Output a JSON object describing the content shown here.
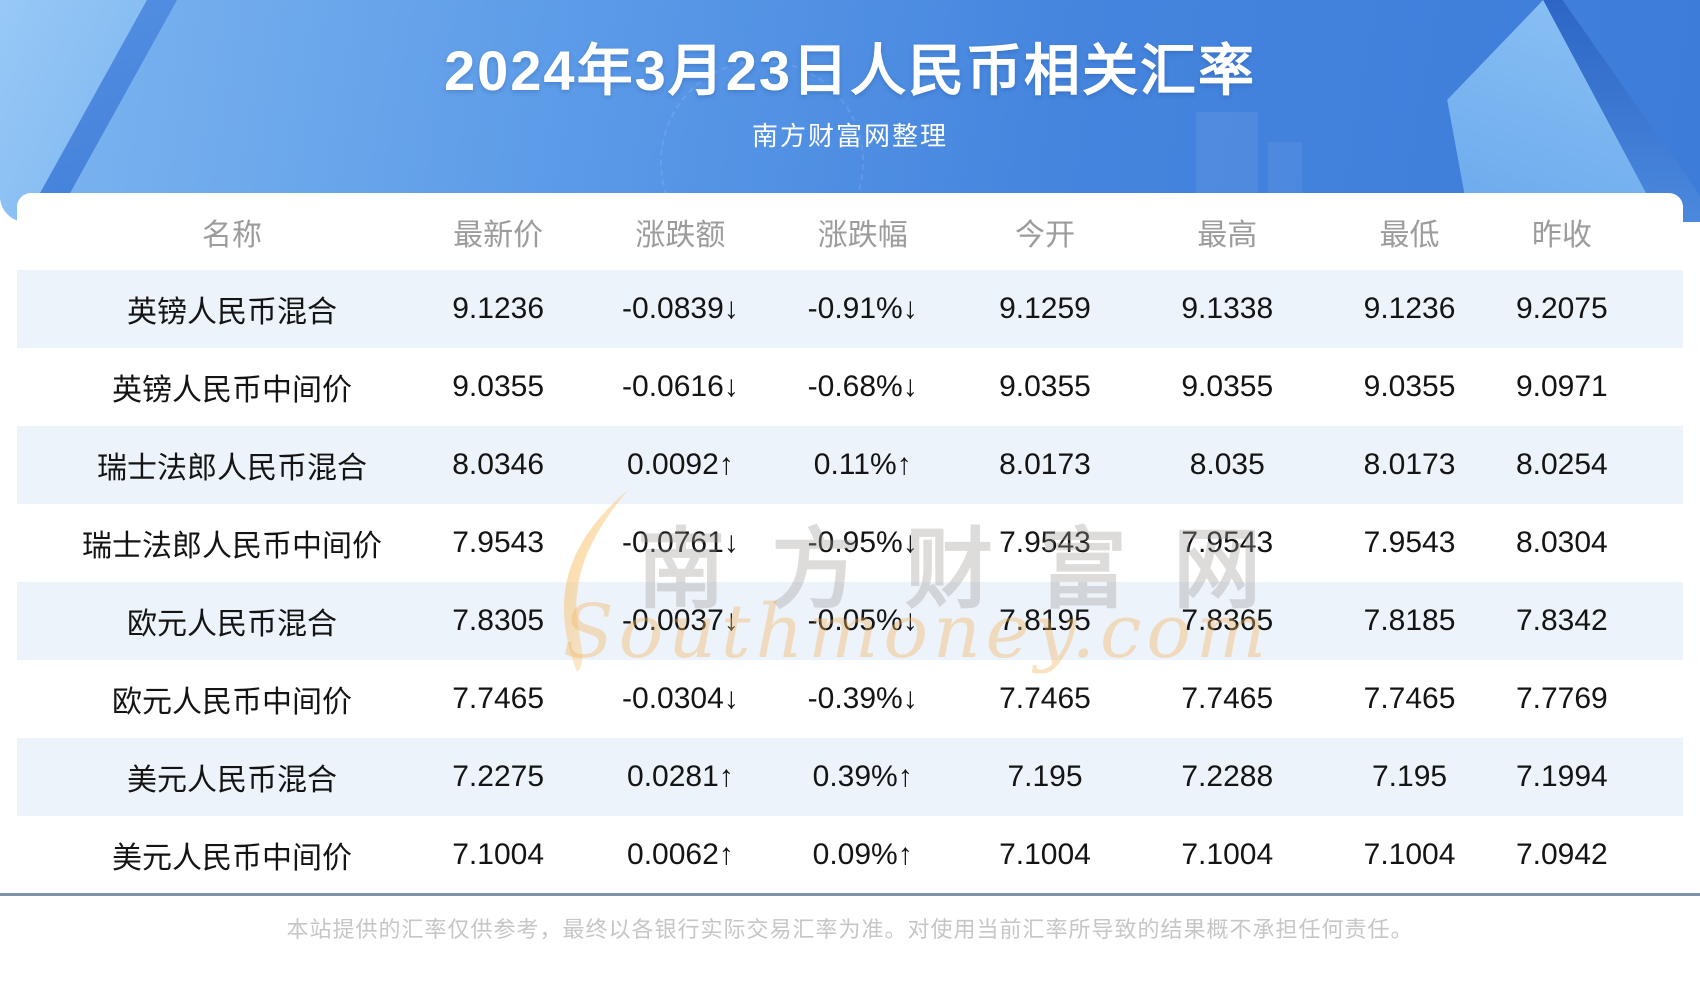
{
  "banner": {
    "title": "2024年3月23日人民币相关汇率",
    "subtitle": "南方财富网整理"
  },
  "table": {
    "columns": [
      "名称",
      "最新价",
      "涨跌额",
      "涨跌幅",
      "今开",
      "最高",
      "最低",
      "昨收"
    ],
    "rows": [
      {
        "name": "英镑人民币混合",
        "latest": "9.1236",
        "change": "-0.0839↓",
        "changePct": "-0.91%↓",
        "open": "9.1259",
        "high": "9.1338",
        "low": "9.1236",
        "prevClose": "9.2075",
        "trend": "down"
      },
      {
        "name": "英镑人民币中间价",
        "latest": "9.0355",
        "change": "-0.0616↓",
        "changePct": "-0.68%↓",
        "open": "9.0355",
        "high": "9.0355",
        "low": "9.0355",
        "prevClose": "9.0971",
        "trend": "down"
      },
      {
        "name": "瑞士法郎人民币混合",
        "latest": "8.0346",
        "change": "0.0092↑",
        "changePct": "0.11%↑",
        "open": "8.0173",
        "high": "8.035",
        "low": "8.0173",
        "prevClose": "8.0254",
        "trend": "up"
      },
      {
        "name": "瑞士法郎人民币中间价",
        "latest": "7.9543",
        "change": "-0.0761↓",
        "changePct": "-0.95%↓",
        "open": "7.9543",
        "high": "7.9543",
        "low": "7.9543",
        "prevClose": "8.0304",
        "trend": "down"
      },
      {
        "name": "欧元人民币混合",
        "latest": "7.8305",
        "change": "-0.0037↓",
        "changePct": "-0.05%↓",
        "open": "7.8195",
        "high": "7.8365",
        "low": "7.8185",
        "prevClose": "7.8342",
        "trend": "down"
      },
      {
        "name": "欧元人民币中间价",
        "latest": "7.7465",
        "change": "-0.0304↓",
        "changePct": "-0.39%↓",
        "open": "7.7465",
        "high": "7.7465",
        "low": "7.7465",
        "prevClose": "7.7769",
        "trend": "down"
      },
      {
        "name": "美元人民币混合",
        "latest": "7.2275",
        "change": "0.0281↑",
        "changePct": "0.39%↑",
        "open": "7.195",
        "high": "7.2288",
        "low": "7.195",
        "prevClose": "7.1994",
        "trend": "up"
      },
      {
        "name": "美元人民币中间价",
        "latest": "7.1004",
        "change": "0.0062↑",
        "changePct": "0.09%↑",
        "open": "7.1004",
        "high": "7.1004",
        "low": "7.1004",
        "prevClose": "7.0942",
        "trend": "up"
      }
    ]
  },
  "watermark": {
    "cn": "南方财富网",
    "en": "Southmoney.com"
  },
  "footer": {
    "disclaimer": "本站提供的汇率仅供参考，最终以各银行实际交易汇率为准。对使用当前汇率所导致的结果概不承担任何责任。"
  },
  "colors": {
    "up": "#ee0000",
    "down": "#008000",
    "row_alt": "#edf3fa",
    "divider": "#7e95a9",
    "banner_blue": "#4585de"
  }
}
